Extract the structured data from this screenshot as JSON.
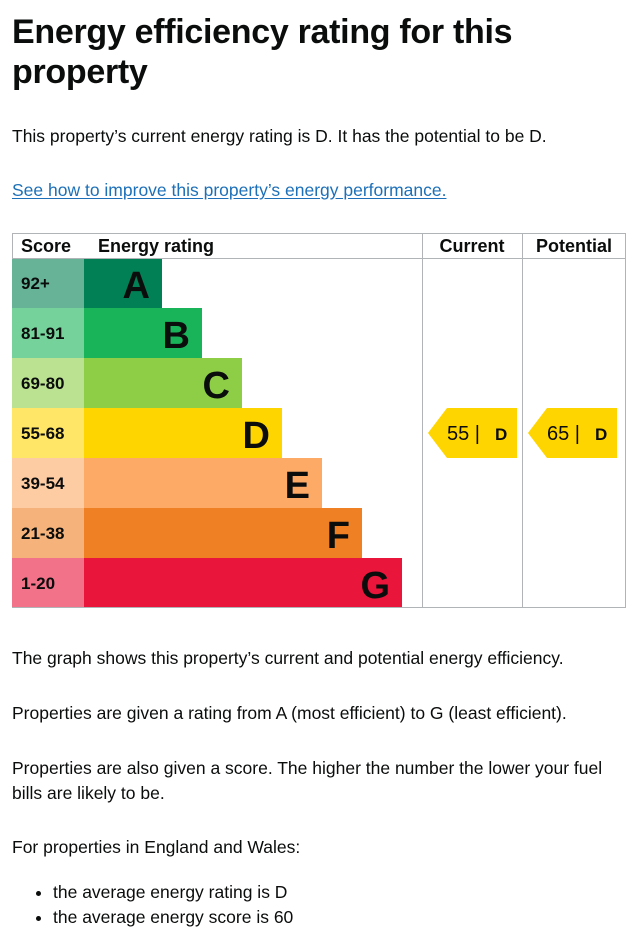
{
  "title": "Energy efficiency rating for this property",
  "summary": "This property’s current energy rating is D. It has the potential to be D.",
  "improve_link": "See how to improve this property’s energy performance.",
  "chart_data": {
    "type": "table",
    "headers": {
      "score": "Score",
      "rating": "Energy rating",
      "current": "Current",
      "potential": "Potential"
    },
    "bands": [
      {
        "letter": "A",
        "range": "92+",
        "color": "#008054",
        "score_bg": "#66b398"
      },
      {
        "letter": "B",
        "range": "81-91",
        "color": "#19b459",
        "score_bg": "#75d29b"
      },
      {
        "letter": "C",
        "range": "69-80",
        "color": "#8dce46",
        "score_bg": "#bbe290"
      },
      {
        "letter": "D",
        "range": "55-68",
        "color": "#ffd500",
        "score_bg": "#ffe666"
      },
      {
        "letter": "E",
        "range": "39-54",
        "color": "#fcaa65",
        "score_bg": "#fdcca3"
      },
      {
        "letter": "F",
        "range": "21-38",
        "color": "#ef8023",
        "score_bg": "#f5b37b"
      },
      {
        "letter": "G",
        "range": "1-20",
        "color": "#e9153b",
        "score_bg": "#f27389"
      }
    ],
    "current": {
      "score": 55,
      "letter": "D",
      "label": "55 |",
      "color": "#ffd500"
    },
    "potential": {
      "score": 65,
      "letter": "D",
      "label": "65 |",
      "color": "#ffd500"
    }
  },
  "explanations": [
    "The graph shows this property’s current and potential energy efficiency.",
    "Properties are given a rating from A (most efficient) to G (least efficient).",
    "Properties are also given a score. The higher the number the lower your fuel bills are likely to be.",
    "For properties in England and Wales:"
  ],
  "bullets": [
    "the average energy rating is D",
    "the average energy score is 60"
  ]
}
